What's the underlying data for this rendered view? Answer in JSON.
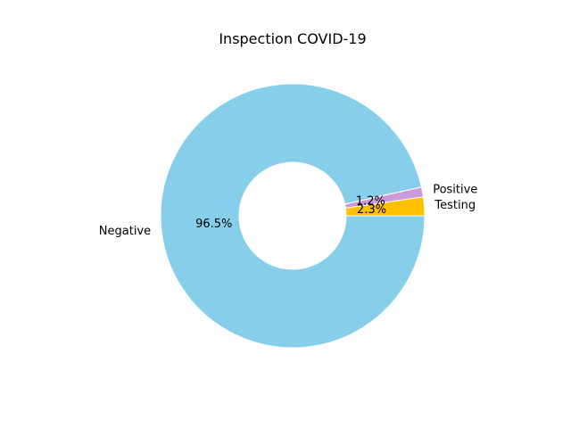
{
  "chart_data": {
    "type": "pie",
    "title": "Inspection COVID-19",
    "donut": true,
    "start_angle_deg": 0,
    "direction": "counterclockwise",
    "legend": "none",
    "grid": false,
    "slices": [
      {
        "label": "Testing",
        "percent": 2.3,
        "percent_label": "2.3%",
        "color": "#FFC000"
      },
      {
        "label": "Positive",
        "percent": 1.2,
        "percent_label": "1.2%",
        "color": "#CC99DD"
      },
      {
        "label": "Negative",
        "percent": 96.5,
        "percent_label": "96.5%",
        "color": "#87CEEB"
      }
    ]
  }
}
